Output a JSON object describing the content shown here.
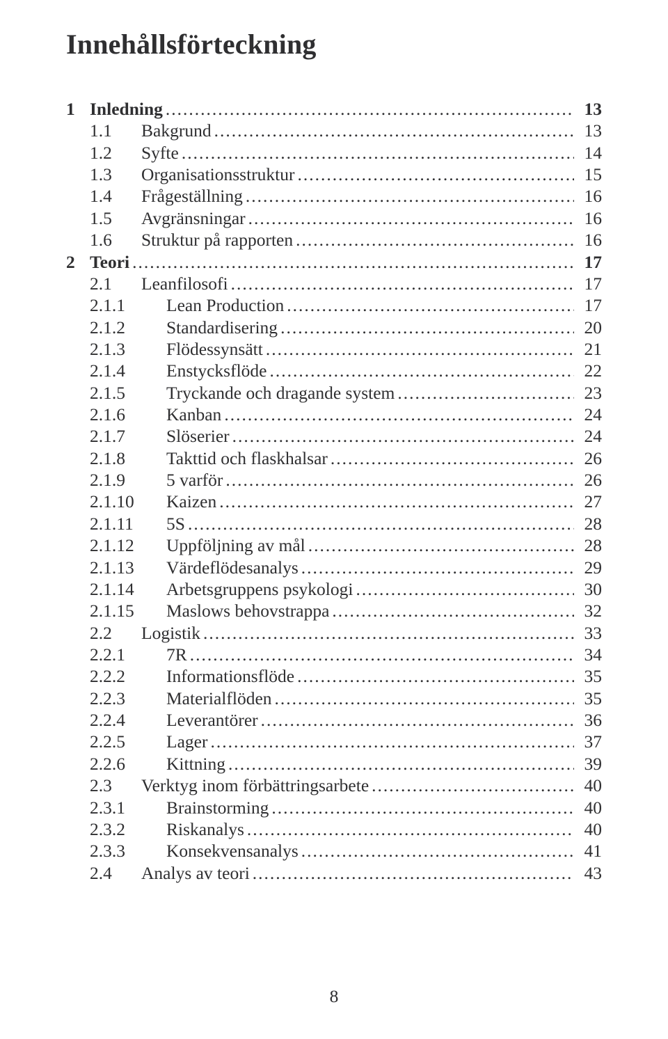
{
  "title": "Innehållsförteckning",
  "page_number": "8",
  "colors": {
    "text": "#2f2f31",
    "background": "#ffffff"
  },
  "typography": {
    "title_fontsize_pt": 30,
    "body_fontsize_pt": 19,
    "font_family": "Times New Roman"
  },
  "entries": [
    {
      "level": 1,
      "num": "1",
      "label": "Inledning",
      "page": "13"
    },
    {
      "level": 2,
      "num": "1.1",
      "label": "Bakgrund",
      "page": "13"
    },
    {
      "level": 2,
      "num": "1.2",
      "label": "Syfte",
      "page": "14"
    },
    {
      "level": 2,
      "num": "1.3",
      "label": "Organisationsstruktur",
      "page": "15"
    },
    {
      "level": 2,
      "num": "1.4",
      "label": "Frågeställning",
      "page": "16"
    },
    {
      "level": 2,
      "num": "1.5",
      "label": "Avgränsningar",
      "page": "16"
    },
    {
      "level": 2,
      "num": "1.6",
      "label": "Struktur på rapporten",
      "page": "16"
    },
    {
      "level": 1,
      "num": "2",
      "label": "Teori",
      "page": "17"
    },
    {
      "level": 2,
      "num": "2.1",
      "label": "Leanfilosofi",
      "page": "17"
    },
    {
      "level": 3,
      "num": "2.1.1",
      "label": "Lean Production",
      "page": "17"
    },
    {
      "level": 3,
      "num": "2.1.2",
      "label": "Standardisering",
      "page": "20"
    },
    {
      "level": 3,
      "num": "2.1.3",
      "label": "Flödessynsätt",
      "page": "21"
    },
    {
      "level": 3,
      "num": "2.1.4",
      "label": "Enstycksflöde",
      "page": "22"
    },
    {
      "level": 3,
      "num": "2.1.5",
      "label": "Tryckande och dragande system",
      "page": "23"
    },
    {
      "level": 3,
      "num": "2.1.6",
      "label": "Kanban",
      "page": "24"
    },
    {
      "level": 3,
      "num": "2.1.7",
      "label": "Slöserier",
      "page": "24"
    },
    {
      "level": 3,
      "num": "2.1.8",
      "label": "Takttid och flaskhalsar",
      "page": "26"
    },
    {
      "level": 3,
      "num": "2.1.9",
      "label": "5 varför",
      "page": "26"
    },
    {
      "level": 3,
      "num": "2.1.10",
      "label": "Kaizen",
      "page": "27"
    },
    {
      "level": 3,
      "num": "2.1.11",
      "label": "5S",
      "page": "28"
    },
    {
      "level": 3,
      "num": "2.1.12",
      "label": "Uppföljning av mål",
      "page": "28"
    },
    {
      "level": 3,
      "num": "2.1.13",
      "label": "Värdeflödesanalys",
      "page": "29"
    },
    {
      "level": 3,
      "num": "2.1.14",
      "label": "Arbetsgruppens psykologi",
      "page": "30"
    },
    {
      "level": 3,
      "num": "2.1.15",
      "label": "Maslows behovstrappa",
      "page": "32"
    },
    {
      "level": 2,
      "num": "2.2",
      "label": "Logistik",
      "page": "33"
    },
    {
      "level": 3,
      "num": "2.2.1",
      "label": "7R",
      "page": "34"
    },
    {
      "level": 3,
      "num": "2.2.2",
      "label": "Informationsflöde",
      "page": "35"
    },
    {
      "level": 3,
      "num": "2.2.3",
      "label": "Materialflöden",
      "page": "35"
    },
    {
      "level": 3,
      "num": "2.2.4",
      "label": "Leverantörer",
      "page": "36"
    },
    {
      "level": 3,
      "num": "2.2.5",
      "label": "Lager",
      "page": "37"
    },
    {
      "level": 3,
      "num": "2.2.6",
      "label": "Kittning",
      "page": "39"
    },
    {
      "level": 2,
      "num": "2.3",
      "label": "Verktyg inom förbättringsarbete",
      "page": "40"
    },
    {
      "level": 3,
      "num": "2.3.1",
      "label": "Brainstorming",
      "page": "40"
    },
    {
      "level": 3,
      "num": "2.3.2",
      "label": "Riskanalys",
      "page": "40"
    },
    {
      "level": 3,
      "num": "2.3.3",
      "label": "Konsekvensanalys",
      "page": "41"
    },
    {
      "level": 2,
      "num": "2.4",
      "label": "Analys av teori",
      "page": "43"
    }
  ]
}
